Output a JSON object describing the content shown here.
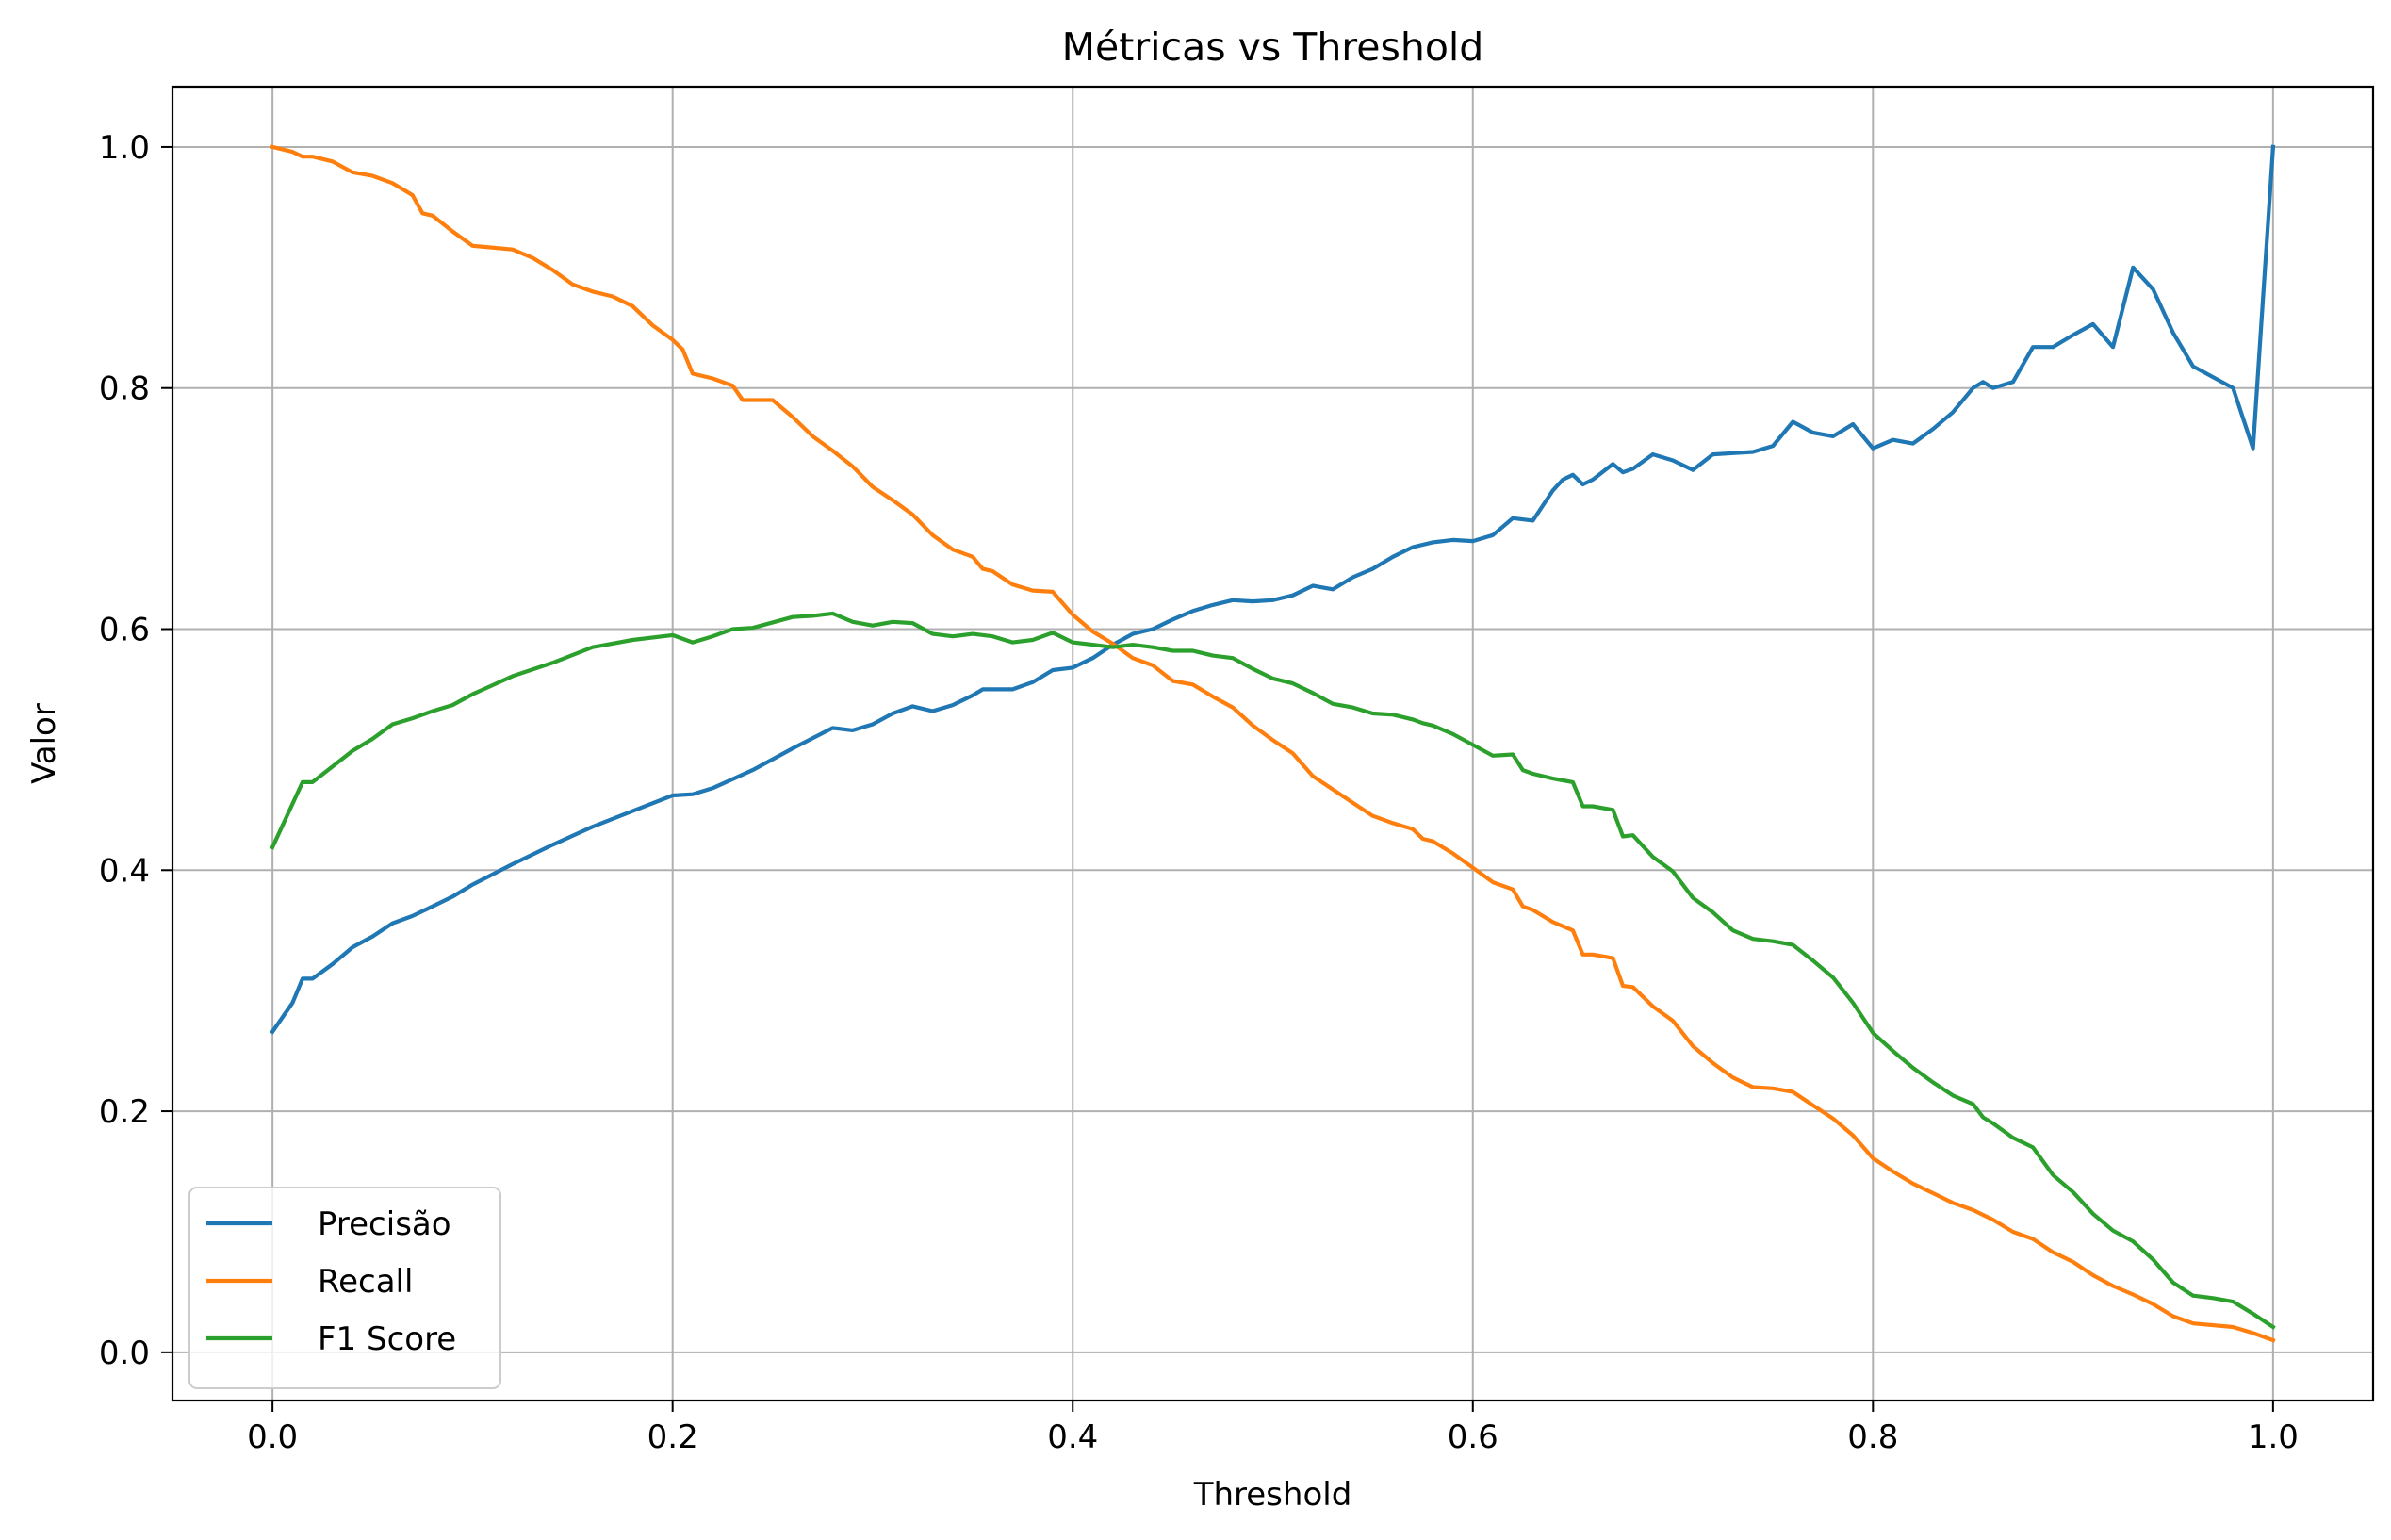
{
  "chart_data": {
    "type": "line",
    "title": "Métricas vs Threshold",
    "xlabel": "Threshold",
    "ylabel": "Valor",
    "xlim": [
      -0.05,
      1.05
    ],
    "ylim": [
      -0.04,
      1.05
    ],
    "xticks": [
      0.0,
      0.2,
      0.4,
      0.6,
      0.8,
      1.0
    ],
    "xtick_labels": [
      "0.0",
      "0.2",
      "0.4",
      "0.6",
      "0.8",
      "1.0"
    ],
    "yticks": [
      0.0,
      0.2,
      0.4,
      0.6,
      0.8,
      1.0
    ],
    "ytick_labels": [
      "0.0",
      "0.2",
      "0.4",
      "0.6",
      "0.8",
      "1.0"
    ],
    "grid": true,
    "legend_position": "lower-left",
    "series": [
      {
        "name": "Precisão",
        "color": "#1f77b4",
        "points": [
          [
            0.0,
            0.266
          ],
          [
            0.01,
            0.29
          ],
          [
            0.015,
            0.31
          ],
          [
            0.02,
            0.31
          ],
          [
            0.03,
            0.322
          ],
          [
            0.04,
            0.336
          ],
          [
            0.05,
            0.345
          ],
          [
            0.06,
            0.356
          ],
          [
            0.07,
            0.362
          ],
          [
            0.08,
            0.37
          ],
          [
            0.09,
            0.378
          ],
          [
            0.1,
            0.388
          ],
          [
            0.12,
            0.405
          ],
          [
            0.14,
            0.421
          ],
          [
            0.16,
            0.436
          ],
          [
            0.18,
            0.449
          ],
          [
            0.2,
            0.462
          ],
          [
            0.21,
            0.463
          ],
          [
            0.22,
            0.468
          ],
          [
            0.24,
            0.483
          ],
          [
            0.26,
            0.501
          ],
          [
            0.28,
            0.518
          ],
          [
            0.29,
            0.516
          ],
          [
            0.3,
            0.521
          ],
          [
            0.31,
            0.53
          ],
          [
            0.32,
            0.536
          ],
          [
            0.33,
            0.532
          ],
          [
            0.34,
            0.537
          ],
          [
            0.35,
            0.545
          ],
          [
            0.355,
            0.55
          ],
          [
            0.37,
            0.55
          ],
          [
            0.38,
            0.556
          ],
          [
            0.39,
            0.566
          ],
          [
            0.4,
            0.568
          ],
          [
            0.41,
            0.576
          ],
          [
            0.42,
            0.587
          ],
          [
            0.43,
            0.596
          ],
          [
            0.44,
            0.6
          ],
          [
            0.45,
            0.608
          ],
          [
            0.46,
            0.615
          ],
          [
            0.47,
            0.62
          ],
          [
            0.48,
            0.624
          ],
          [
            0.49,
            0.623
          ],
          [
            0.5,
            0.624
          ],
          [
            0.51,
            0.628
          ],
          [
            0.52,
            0.636
          ],
          [
            0.53,
            0.633
          ],
          [
            0.54,
            0.643
          ],
          [
            0.55,
            0.65
          ],
          [
            0.56,
            0.66
          ],
          [
            0.57,
            0.668
          ],
          [
            0.58,
            0.672
          ],
          [
            0.59,
            0.674
          ],
          [
            0.6,
            0.673
          ],
          [
            0.61,
            0.678
          ],
          [
            0.62,
            0.692
          ],
          [
            0.63,
            0.69
          ],
          [
            0.64,
            0.715
          ],
          [
            0.645,
            0.724
          ],
          [
            0.65,
            0.728
          ],
          [
            0.655,
            0.72
          ],
          [
            0.66,
            0.724
          ],
          [
            0.67,
            0.737
          ],
          [
            0.675,
            0.73
          ],
          [
            0.68,
            0.733
          ],
          [
            0.69,
            0.745
          ],
          [
            0.7,
            0.74
          ],
          [
            0.71,
            0.732
          ],
          [
            0.72,
            0.745
          ],
          [
            0.73,
            0.746
          ],
          [
            0.74,
            0.747
          ],
          [
            0.75,
            0.752
          ],
          [
            0.76,
            0.772
          ],
          [
            0.77,
            0.763
          ],
          [
            0.78,
            0.76
          ],
          [
            0.79,
            0.77
          ],
          [
            0.8,
            0.75
          ],
          [
            0.81,
            0.757
          ],
          [
            0.82,
            0.754
          ],
          [
            0.83,
            0.766
          ],
          [
            0.84,
            0.78
          ],
          [
            0.85,
            0.8
          ],
          [
            0.855,
            0.805
          ],
          [
            0.86,
            0.8
          ],
          [
            0.87,
            0.805
          ],
          [
            0.88,
            0.834
          ],
          [
            0.89,
            0.834
          ],
          [
            0.9,
            0.844
          ],
          [
            0.91,
            0.853
          ],
          [
            0.92,
            0.834
          ],
          [
            0.93,
            0.9
          ],
          [
            0.94,
            0.882
          ],
          [
            0.95,
            0.846
          ],
          [
            0.96,
            0.818
          ],
          [
            0.97,
            0.809
          ],
          [
            0.98,
            0.8
          ],
          [
            0.99,
            0.75
          ],
          [
            1.0,
            1.0
          ]
        ]
      },
      {
        "name": "Recall",
        "color": "#ff7f0e",
        "points": [
          [
            0.0,
            1.0
          ],
          [
            0.01,
            0.996
          ],
          [
            0.015,
            0.992
          ],
          [
            0.02,
            0.992
          ],
          [
            0.03,
            0.988
          ],
          [
            0.04,
            0.979
          ],
          [
            0.05,
            0.976
          ],
          [
            0.06,
            0.97
          ],
          [
            0.07,
            0.96
          ],
          [
            0.075,
            0.945
          ],
          [
            0.08,
            0.943
          ],
          [
            0.09,
            0.93
          ],
          [
            0.1,
            0.918
          ],
          [
            0.12,
            0.915
          ],
          [
            0.13,
            0.908
          ],
          [
            0.14,
            0.898
          ],
          [
            0.15,
            0.886
          ],
          [
            0.16,
            0.88
          ],
          [
            0.17,
            0.876
          ],
          [
            0.18,
            0.868
          ],
          [
            0.19,
            0.852
          ],
          [
            0.2,
            0.84
          ],
          [
            0.205,
            0.832
          ],
          [
            0.21,
            0.812
          ],
          [
            0.22,
            0.808
          ],
          [
            0.23,
            0.802
          ],
          [
            0.235,
            0.79
          ],
          [
            0.25,
            0.79
          ],
          [
            0.26,
            0.776
          ],
          [
            0.27,
            0.76
          ],
          [
            0.28,
            0.748
          ],
          [
            0.29,
            0.735
          ],
          [
            0.3,
            0.718
          ],
          [
            0.31,
            0.707
          ],
          [
            0.32,
            0.695
          ],
          [
            0.33,
            0.678
          ],
          [
            0.34,
            0.666
          ],
          [
            0.35,
            0.66
          ],
          [
            0.355,
            0.65
          ],
          [
            0.36,
            0.648
          ],
          [
            0.37,
            0.637
          ],
          [
            0.38,
            0.632
          ],
          [
            0.39,
            0.631
          ],
          [
            0.4,
            0.612
          ],
          [
            0.41,
            0.598
          ],
          [
            0.42,
            0.588
          ],
          [
            0.43,
            0.576
          ],
          [
            0.44,
            0.57
          ],
          [
            0.45,
            0.557
          ],
          [
            0.46,
            0.554
          ],
          [
            0.47,
            0.544
          ],
          [
            0.48,
            0.535
          ],
          [
            0.49,
            0.52
          ],
          [
            0.5,
            0.508
          ],
          [
            0.51,
            0.497
          ],
          [
            0.52,
            0.478
          ],
          [
            0.53,
            0.467
          ],
          [
            0.54,
            0.456
          ],
          [
            0.55,
            0.445
          ],
          [
            0.56,
            0.439
          ],
          [
            0.57,
            0.434
          ],
          [
            0.575,
            0.426
          ],
          [
            0.58,
            0.424
          ],
          [
            0.59,
            0.414
          ],
          [
            0.6,
            0.402
          ],
          [
            0.61,
            0.39
          ],
          [
            0.62,
            0.384
          ],
          [
            0.625,
            0.37
          ],
          [
            0.63,
            0.367
          ],
          [
            0.64,
            0.357
          ],
          [
            0.65,
            0.35
          ],
          [
            0.655,
            0.33
          ],
          [
            0.66,
            0.33
          ],
          [
            0.67,
            0.327
          ],
          [
            0.675,
            0.304
          ],
          [
            0.68,
            0.303
          ],
          [
            0.69,
            0.287
          ],
          [
            0.7,
            0.275
          ],
          [
            0.71,
            0.254
          ],
          [
            0.72,
            0.24
          ],
          [
            0.73,
            0.228
          ],
          [
            0.74,
            0.22
          ],
          [
            0.75,
            0.219
          ],
          [
            0.76,
            0.216
          ],
          [
            0.77,
            0.205
          ],
          [
            0.78,
            0.194
          ],
          [
            0.79,
            0.18
          ],
          [
            0.8,
            0.161
          ],
          [
            0.81,
            0.15
          ],
          [
            0.82,
            0.14
          ],
          [
            0.83,
            0.132
          ],
          [
            0.84,
            0.124
          ],
          [
            0.85,
            0.118
          ],
          [
            0.86,
            0.11
          ],
          [
            0.87,
            0.1
          ],
          [
            0.88,
            0.094
          ],
          [
            0.89,
            0.083
          ],
          [
            0.9,
            0.075
          ],
          [
            0.91,
            0.064
          ],
          [
            0.92,
            0.055
          ],
          [
            0.93,
            0.048
          ],
          [
            0.94,
            0.04
          ],
          [
            0.95,
            0.03
          ],
          [
            0.96,
            0.024
          ],
          [
            0.98,
            0.021
          ],
          [
            0.99,
            0.016
          ],
          [
            1.0,
            0.01
          ]
        ]
      },
      {
        "name": "F1 Score",
        "color": "#2ca02c",
        "points": [
          [
            0.0,
            0.419
          ],
          [
            0.01,
            0.455
          ],
          [
            0.015,
            0.473
          ],
          [
            0.02,
            0.473
          ],
          [
            0.03,
            0.486
          ],
          [
            0.04,
            0.499
          ],
          [
            0.05,
            0.509
          ],
          [
            0.06,
            0.521
          ],
          [
            0.07,
            0.526
          ],
          [
            0.08,
            0.532
          ],
          [
            0.09,
            0.537
          ],
          [
            0.1,
            0.546
          ],
          [
            0.12,
            0.561
          ],
          [
            0.14,
            0.572
          ],
          [
            0.16,
            0.585
          ],
          [
            0.18,
            0.591
          ],
          [
            0.2,
            0.595
          ],
          [
            0.21,
            0.589
          ],
          [
            0.22,
            0.594
          ],
          [
            0.23,
            0.6
          ],
          [
            0.24,
            0.601
          ],
          [
            0.26,
            0.61
          ],
          [
            0.27,
            0.611
          ],
          [
            0.28,
            0.613
          ],
          [
            0.29,
            0.606
          ],
          [
            0.3,
            0.603
          ],
          [
            0.31,
            0.606
          ],
          [
            0.32,
            0.605
          ],
          [
            0.33,
            0.596
          ],
          [
            0.34,
            0.594
          ],
          [
            0.35,
            0.596
          ],
          [
            0.36,
            0.594
          ],
          [
            0.37,
            0.589
          ],
          [
            0.38,
            0.591
          ],
          [
            0.39,
            0.597
          ],
          [
            0.4,
            0.589
          ],
          [
            0.41,
            0.587
          ],
          [
            0.42,
            0.585
          ],
          [
            0.43,
            0.587
          ],
          [
            0.44,
            0.585
          ],
          [
            0.45,
            0.582
          ],
          [
            0.46,
            0.582
          ],
          [
            0.47,
            0.578
          ],
          [
            0.48,
            0.576
          ],
          [
            0.49,
            0.567
          ],
          [
            0.5,
            0.559
          ],
          [
            0.51,
            0.555
          ],
          [
            0.52,
            0.547
          ],
          [
            0.53,
            0.538
          ],
          [
            0.54,
            0.535
          ],
          [
            0.55,
            0.53
          ],
          [
            0.56,
            0.529
          ],
          [
            0.57,
            0.525
          ],
          [
            0.575,
            0.522
          ],
          [
            0.58,
            0.52
          ],
          [
            0.59,
            0.513
          ],
          [
            0.6,
            0.504
          ],
          [
            0.61,
            0.495
          ],
          [
            0.62,
            0.496
          ],
          [
            0.625,
            0.483
          ],
          [
            0.63,
            0.48
          ],
          [
            0.64,
            0.476
          ],
          [
            0.65,
            0.473
          ],
          [
            0.655,
            0.453
          ],
          [
            0.66,
            0.453
          ],
          [
            0.67,
            0.45
          ],
          [
            0.675,
            0.428
          ],
          [
            0.68,
            0.429
          ],
          [
            0.69,
            0.411
          ],
          [
            0.7,
            0.399
          ],
          [
            0.71,
            0.377
          ],
          [
            0.72,
            0.365
          ],
          [
            0.73,
            0.35
          ],
          [
            0.74,
            0.343
          ],
          [
            0.75,
            0.341
          ],
          [
            0.76,
            0.338
          ],
          [
            0.77,
            0.325
          ],
          [
            0.78,
            0.311
          ],
          [
            0.79,
            0.29
          ],
          [
            0.8,
            0.265
          ],
          [
            0.81,
            0.25
          ],
          [
            0.82,
            0.236
          ],
          [
            0.83,
            0.224
          ],
          [
            0.84,
            0.213
          ],
          [
            0.85,
            0.206
          ],
          [
            0.855,
            0.195
          ],
          [
            0.86,
            0.19
          ],
          [
            0.87,
            0.178
          ],
          [
            0.88,
            0.17
          ],
          [
            0.89,
            0.147
          ],
          [
            0.9,
            0.133
          ],
          [
            0.91,
            0.115
          ],
          [
            0.92,
            0.101
          ],
          [
            0.93,
            0.092
          ],
          [
            0.94,
            0.077
          ],
          [
            0.95,
            0.058
          ],
          [
            0.96,
            0.047
          ],
          [
            0.97,
            0.045
          ],
          [
            0.98,
            0.042
          ],
          [
            0.99,
            0.032
          ],
          [
            1.0,
            0.021
          ]
        ]
      }
    ]
  }
}
